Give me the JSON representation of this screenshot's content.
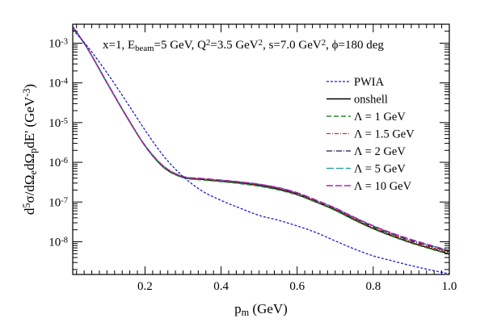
{
  "chart_data": {
    "type": "line",
    "annotation": {
      "parts": [
        {
          "t": "x=1, E",
          "s": "n"
        },
        {
          "t": "beam",
          "s": "sub"
        },
        {
          "t": "=5 GeV, Q",
          "s": "n"
        },
        {
          "t": "2",
          "s": "sup"
        },
        {
          "t": "=3.5 GeV",
          "s": "n"
        },
        {
          "t": "2",
          "s": "sup"
        },
        {
          "t": ", s=7.0 GeV",
          "s": "n"
        },
        {
          "t": "2",
          "s": "sup"
        },
        {
          "t": ", ",
          "s": "n"
        },
        {
          "t": "ϕ",
          "s": "n"
        },
        {
          "t": "=180 deg",
          "s": "n"
        }
      ]
    },
    "xlabel": {
      "parts": [
        {
          "t": "p",
          "s": "n"
        },
        {
          "t": "m",
          "s": "sub"
        },
        {
          "t": " (GeV)",
          "s": "n"
        }
      ]
    },
    "ylabel": {
      "parts": [
        {
          "t": "d",
          "s": "n"
        },
        {
          "t": "5",
          "s": "sup"
        },
        {
          "t": "σ/dΩ",
          "s": "n"
        },
        {
          "t": "e",
          "s": "sub"
        },
        {
          "t": "dΩ",
          "s": "n"
        },
        {
          "t": "p",
          "s": "sub"
        },
        {
          "t": "dE' (GeV",
          "s": "n"
        },
        {
          "t": "-3",
          "s": "sup"
        },
        {
          "t": ")",
          "s": "n"
        }
      ]
    },
    "xlim": [
      0.01,
      1.0
    ],
    "ylim": [
      1.5e-09,
      0.003
    ],
    "y_scale": "log",
    "x_ticks": [
      {
        "value": 0.2,
        "label": "0.2"
      },
      {
        "value": 0.4,
        "label": "0.4"
      },
      {
        "value": 0.6,
        "label": "0.6"
      },
      {
        "value": 0.8,
        "label": "0.8"
      },
      {
        "value": 1.0,
        "label": "1.0"
      }
    ],
    "y_ticks": [
      {
        "value": 0.001,
        "base": "10",
        "exp": "-3"
      },
      {
        "value": 0.0001,
        "base": "10",
        "exp": "-4"
      },
      {
        "value": 1e-05,
        "base": "10",
        "exp": "-5"
      },
      {
        "value": 1e-06,
        "base": "10",
        "exp": "-6"
      },
      {
        "value": 1e-07,
        "base": "10",
        "exp": "-7"
      },
      {
        "value": 1e-08,
        "base": "10",
        "exp": "-8"
      }
    ],
    "grid": false,
    "legend_position": "top-right",
    "series": [
      {
        "id": "pwia",
        "name": "PWIA",
        "color": "#1c1cd0",
        "dash": "3,2",
        "width": 1.3,
        "x": [
          0.01,
          0.05,
          0.1,
          0.15,
          0.2,
          0.25,
          0.3,
          0.35,
          0.4,
          0.45,
          0.5,
          0.55,
          0.6,
          0.65,
          0.7,
          0.75,
          0.8,
          0.85,
          0.9,
          0.95,
          1.0
        ],
        "y": [
          0.0022,
          0.0008,
          0.00018,
          3.5e-05,
          6.5e-06,
          1.4e-06,
          4.4e-07,
          1.9e-07,
          1.1e-07,
          7e-08,
          4.6e-08,
          3.5e-08,
          2.5e-08,
          1.7e-08,
          1.05e-08,
          6.6e-09,
          4.4e-09,
          3.3e-09,
          2.5e-09,
          1.95e-09,
          1.55e-09
        ]
      },
      {
        "id": "onshell",
        "name": "onshell",
        "color": "#000000",
        "dash": "",
        "width": 1.5,
        "x": [
          0.01,
          0.05,
          0.1,
          0.15,
          0.2,
          0.25,
          0.3,
          0.35,
          0.4,
          0.45,
          0.5,
          0.55,
          0.6,
          0.65,
          0.7,
          0.75,
          0.8,
          0.85,
          0.9,
          0.95,
          1.0
        ],
        "y": [
          0.0026,
          0.0007,
          0.0001,
          1.5e-05,
          2.6e-06,
          7.4e-07,
          4.2e-07,
          3.7e-07,
          3.35e-07,
          3e-07,
          2.6e-07,
          2.1e-07,
          1.55e-07,
          1e-07,
          6.3e-08,
          3.6e-08,
          2.15e-08,
          1.4e-08,
          9.5e-09,
          6.8e-09,
          4.9e-09
        ]
      },
      {
        "id": "l1",
        "name": "Λ = 1 GeV",
        "color": "#2a8a2a",
        "dash": "6,3",
        "width": 1.4,
        "x": [
          0.01,
          0.05,
          0.1,
          0.15,
          0.2,
          0.25,
          0.3,
          0.35,
          0.4,
          0.45,
          0.5,
          0.55,
          0.6,
          0.65,
          0.7,
          0.75,
          0.8,
          0.85,
          0.9,
          0.95,
          1.0
        ],
        "y": [
          0.0026,
          0.0007,
          0.0001,
          1.5e-05,
          2.6e-06,
          7.2e-07,
          4.1e-07,
          3.6e-07,
          3.25e-07,
          2.9e-07,
          2.5e-07,
          2.02e-07,
          1.5e-07,
          9.8e-08,
          6.1e-08,
          3.5e-08,
          2.1e-08,
          1.36e-08,
          9.2e-09,
          6.6e-09,
          4.8e-09
        ]
      },
      {
        "id": "l15",
        "name": "Λ = 1.5 GeV",
        "color": "#e02020",
        "dash": "5,2,1,2",
        "width": 1.3,
        "x": [
          0.01,
          0.05,
          0.1,
          0.15,
          0.2,
          0.25,
          0.3,
          0.35,
          0.4,
          0.45,
          0.5,
          0.55,
          0.6,
          0.65,
          0.7,
          0.75,
          0.8,
          0.85,
          0.9,
          0.95,
          1.0
        ],
        "y": [
          0.0026,
          0.00071,
          0.000102,
          1.52e-05,
          2.65e-06,
          7.6e-07,
          4.3e-07,
          3.8e-07,
          3.45e-07,
          3.1e-07,
          2.7e-07,
          2.2e-07,
          1.62e-07,
          1.05e-07,
          6.6e-08,
          3.8e-08,
          2.3e-08,
          1.5e-08,
          1.02e-08,
          7.3e-09,
          5.3e-09
        ]
      },
      {
        "id": "l2",
        "name": "Λ = 2 GeV",
        "color": "#161650",
        "dash": "7,2,1,2",
        "width": 1.3,
        "x": [
          0.01,
          0.05,
          0.1,
          0.15,
          0.2,
          0.25,
          0.3,
          0.35,
          0.4,
          0.45,
          0.5,
          0.55,
          0.6,
          0.65,
          0.7,
          0.75,
          0.8,
          0.85,
          0.9,
          0.95,
          1.0
        ],
        "y": [
          0.0026,
          0.00071,
          0.000102,
          1.53e-05,
          2.66e-06,
          7.7e-07,
          4.35e-07,
          3.85e-07,
          3.5e-07,
          3.15e-07,
          2.75e-07,
          2.25e-07,
          1.66e-07,
          1.08e-07,
          6.8e-08,
          3.95e-08,
          2.4e-08,
          1.56e-08,
          1.07e-08,
          7.7e-09,
          5.6e-09
        ]
      },
      {
        "id": "l5",
        "name": "Λ = 5 GeV",
        "color": "#1a9a9a",
        "dash": "9,3",
        "width": 1.3,
        "x": [
          0.01,
          0.05,
          0.1,
          0.15,
          0.2,
          0.25,
          0.3,
          0.35,
          0.4,
          0.45,
          0.5,
          0.55,
          0.6,
          0.65,
          0.7,
          0.75,
          0.8,
          0.85,
          0.9,
          0.95,
          1.0
        ],
        "y": [
          0.0026,
          0.00071,
          0.000103,
          1.54e-05,
          2.68e-06,
          7.8e-07,
          4.4e-07,
          3.9e-07,
          3.55e-07,
          3.2e-07,
          2.8e-07,
          2.3e-07,
          1.7e-07,
          1.11e-07,
          7e-08,
          4.1e-08,
          2.5e-08,
          1.63e-08,
          1.12e-08,
          8.1e-09,
          5.9e-09
        ]
      },
      {
        "id": "l10",
        "name": "Λ = 10 GeV",
        "color": "#b020b0",
        "dash": "8,3",
        "width": 1.4,
        "x": [
          0.01,
          0.05,
          0.1,
          0.15,
          0.2,
          0.25,
          0.3,
          0.35,
          0.4,
          0.45,
          0.5,
          0.55,
          0.6,
          0.65,
          0.7,
          0.75,
          0.8,
          0.85,
          0.9,
          0.95,
          1.0
        ],
        "y": [
          0.0026,
          0.00071,
          0.000103,
          1.54e-05,
          2.69e-06,
          7.85e-07,
          4.42e-07,
          3.92e-07,
          3.57e-07,
          3.22e-07,
          2.82e-07,
          2.32e-07,
          1.72e-07,
          1.12e-07,
          7.1e-08,
          4.15e-08,
          2.53e-08,
          1.65e-08,
          1.14e-08,
          8.2e-09,
          6e-09
        ]
      }
    ]
  }
}
